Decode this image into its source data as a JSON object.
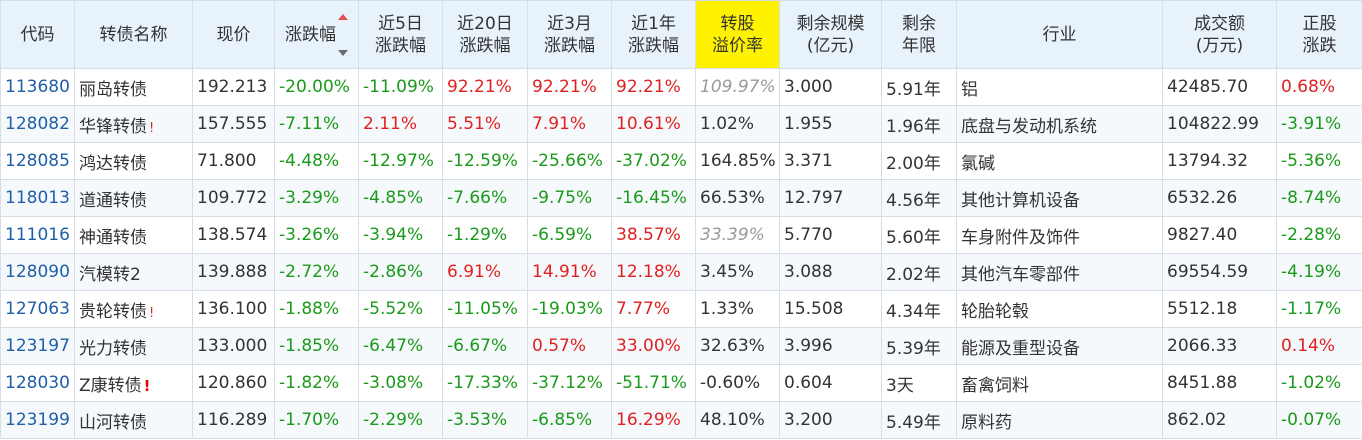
{
  "headers": {
    "code": "代码",
    "name": "转债名称",
    "price": "现价",
    "change": "涨跌幅",
    "d5": [
      "近5日",
      "涨跌幅"
    ],
    "d20": [
      "近20日",
      "涨跌幅"
    ],
    "m3": [
      "近3月",
      "涨跌幅"
    ],
    "y1": [
      "近1年",
      "涨跌幅"
    ],
    "premium": [
      "转股",
      "溢价率"
    ],
    "scale": [
      "剩余规模",
      "(亿元)"
    ],
    "term": [
      "剩余",
      "年限"
    ],
    "industry": "行业",
    "volume": [
      "成交额",
      "(万元)"
    ],
    "stock": [
      "正股",
      "涨跌"
    ]
  },
  "rows": [
    {
      "code": "113680",
      "name": "丽岛转债",
      "flag": "",
      "price": "192.213",
      "change": "-20.00%",
      "d5": "-11.09%",
      "d20": "92.21%",
      "m3": "92.21%",
      "y1": "92.21%",
      "premium": "109.97%",
      "scale": "3.000",
      "term": "5.91年",
      "industry": "铝",
      "volume": "42485.70",
      "stock": "0.68%"
    },
    {
      "code": "128082",
      "name": "华锋转债",
      "flag": "!",
      "price": "157.555",
      "change": "-7.11%",
      "d5": "2.11%",
      "d20": "5.51%",
      "m3": "7.91%",
      "y1": "10.61%",
      "premium": "1.02%",
      "scale": "1.955",
      "term": "1.96年",
      "industry": "底盘与发动机系统",
      "volume": "104822.99",
      "stock": "-3.91%"
    },
    {
      "code": "128085",
      "name": "鸿达转债",
      "flag": "",
      "price": "71.800",
      "change": "-4.48%",
      "d5": "-12.97%",
      "d20": "-12.59%",
      "m3": "-25.66%",
      "y1": "-37.02%",
      "premium": "164.85%",
      "scale": "3.371",
      "term": "2.00年",
      "industry": "氯碱",
      "volume": "13794.32",
      "stock": "-5.36%"
    },
    {
      "code": "118013",
      "name": "道通转债",
      "flag": "",
      "price": "109.772",
      "change": "-3.29%",
      "d5": "-4.85%",
      "d20": "-7.66%",
      "m3": "-9.75%",
      "y1": "-16.45%",
      "premium": "66.53%",
      "scale": "12.797",
      "term": "4.56年",
      "industry": "其他计算机设备",
      "volume": "6532.26",
      "stock": "-8.74%"
    },
    {
      "code": "111016",
      "name": "神通转债",
      "flag": "",
      "price": "138.574",
      "change": "-3.26%",
      "d5": "-3.94%",
      "d20": "-1.29%",
      "m3": "-6.59%",
      "y1": "38.57%",
      "premium": "33.39%",
      "scale": "5.770",
      "term": "5.60年",
      "industry": "车身附件及饰件",
      "volume": "9827.40",
      "stock": "-2.28%"
    },
    {
      "code": "128090",
      "name": "汽模转2",
      "flag": "",
      "price": "139.888",
      "change": "-2.72%",
      "d5": "-2.86%",
      "d20": "6.91%",
      "m3": "14.91%",
      "y1": "12.18%",
      "premium": "3.45%",
      "scale": "3.088",
      "term": "2.02年",
      "industry": "其他汽车零部件",
      "volume": "69554.59",
      "stock": "-4.19%"
    },
    {
      "code": "127063",
      "name": "贵轮转债",
      "flag": "!",
      "price": "136.100",
      "change": "-1.88%",
      "d5": "-5.52%",
      "d20": "-11.05%",
      "m3": "-19.03%",
      "y1": "7.77%",
      "premium": "1.33%",
      "scale": "15.508",
      "term": "4.34年",
      "industry": "轮胎轮毂",
      "volume": "5512.18",
      "stock": "-1.17%"
    },
    {
      "code": "123197",
      "name": "光力转债",
      "flag": "",
      "price": "133.000",
      "change": "-1.85%",
      "d5": "-6.47%",
      "d20": "-6.67%",
      "m3": "0.57%",
      "y1": "33.00%",
      "premium": "32.63%",
      "scale": "3.996",
      "term": "5.39年",
      "industry": "能源及重型设备",
      "volume": "2066.33",
      "stock": "0.14%"
    },
    {
      "code": "128030",
      "name": "Z康转债",
      "flag": "!",
      "price": "120.860",
      "change": "-1.82%",
      "d5": "-3.08%",
      "d20": "-17.33%",
      "m3": "-37.12%",
      "y1": "-51.71%",
      "premium": "-0.60%",
      "scale": "0.604",
      "term": "3天",
      "industry": "畜禽饲料",
      "volume": "8451.88",
      "stock": "-1.02%"
    },
    {
      "code": "123199",
      "name": "山河转债",
      "flag": "",
      "price": "116.289",
      "change": "-1.70%",
      "d5": "-2.29%",
      "d20": "-3.53%",
      "m3": "-6.85%",
      "y1": "16.29%",
      "premium": "48.10%",
      "scale": "3.200",
      "term": "5.49年",
      "industry": "原料药",
      "volume": "862.02",
      "stock": "-0.07%"
    }
  ],
  "muted_premium_rows": [
    0,
    4
  ],
  "bold_flag_rows": [
    8
  ],
  "colors": {
    "up": "#e02020",
    "down": "#1a9a1a",
    "code": "#1f5fa8",
    "header_bg": "#e8f2fb",
    "highlight": "#fff200"
  }
}
